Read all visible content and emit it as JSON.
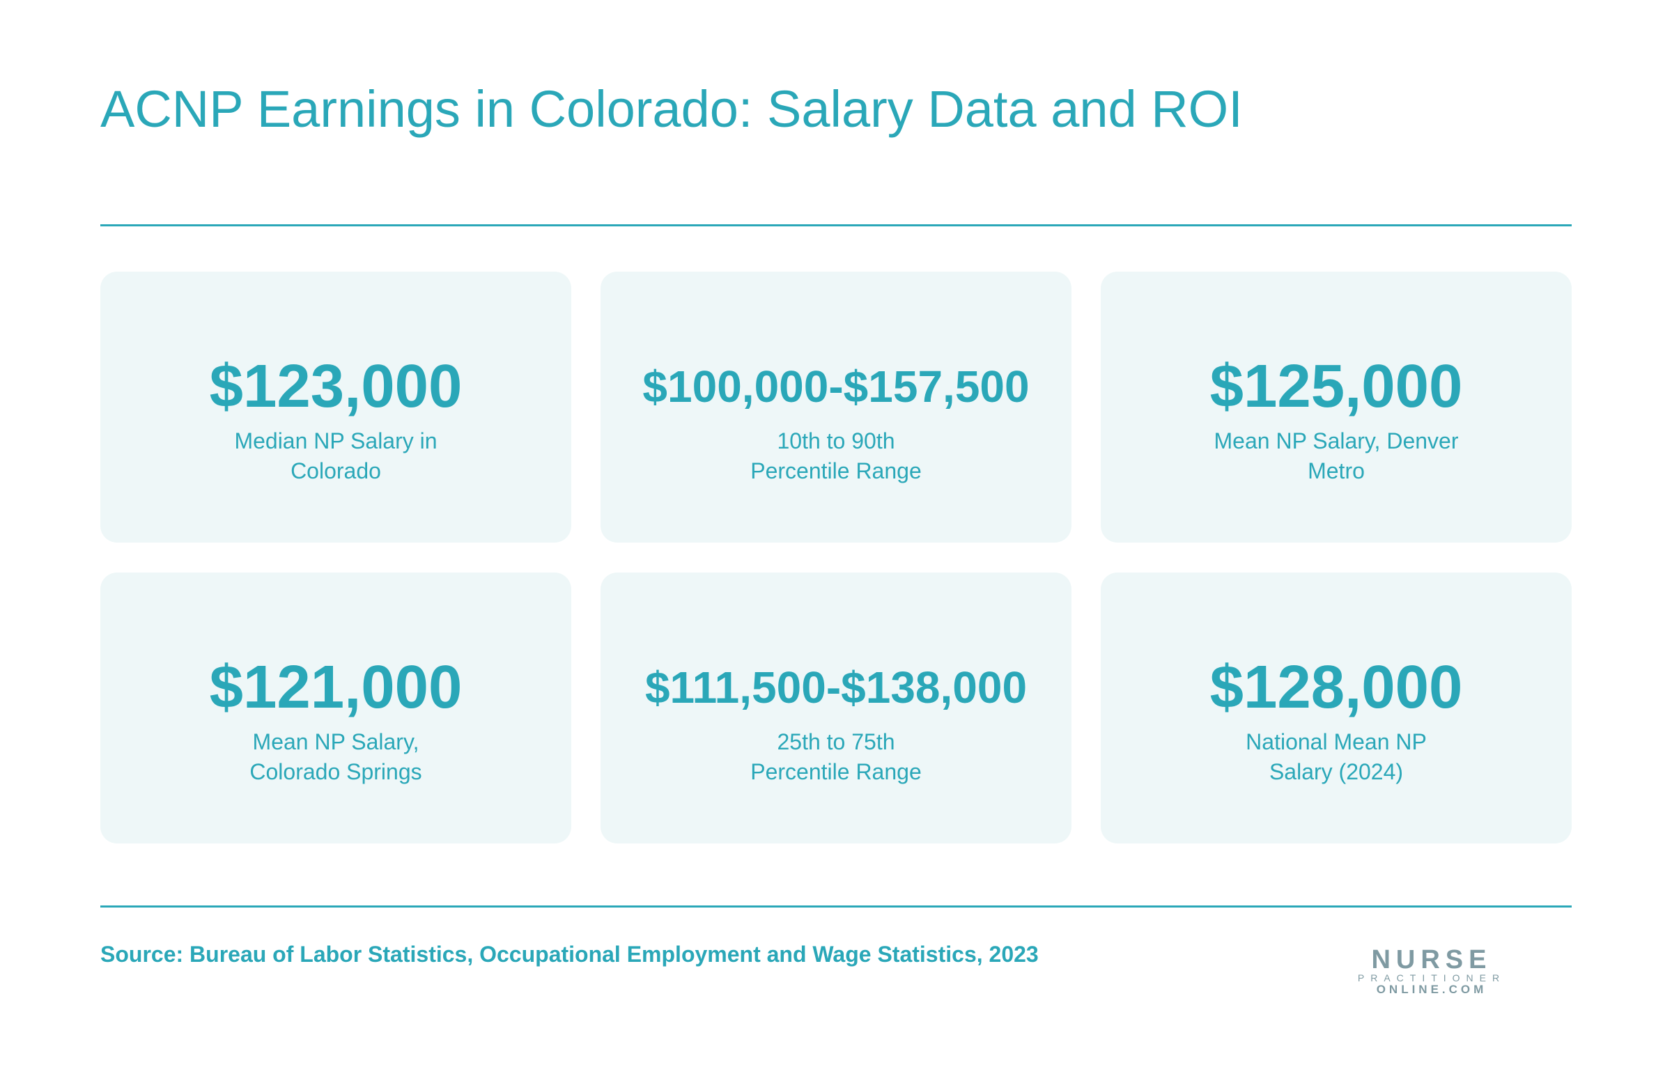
{
  "header": {
    "title": "ACNP Earnings in Colorado: Salary Data and ROI"
  },
  "cards": [
    {
      "value": "$123,000",
      "label": [
        "Median NP Salary in",
        "Colorado"
      ]
    },
    {
      "value": "$100,000-$157,500",
      "label": [
        "10th to 90th",
        "Percentile Range"
      ]
    },
    {
      "value": "$125,000",
      "label": [
        "Mean NP Salary, Denver",
        "Metro"
      ]
    },
    {
      "value": "$121,000",
      "label": [
        "Mean NP Salary,",
        "Colorado Springs"
      ]
    },
    {
      "value": "$111,500-$138,000",
      "label": [
        "25th to 75th",
        "Percentile Range"
      ]
    },
    {
      "value": "$128,000",
      "label": [
        "National Mean NP",
        "Salary (2024)"
      ]
    }
  ],
  "footer": {
    "source": "Source: Bureau of Labor Statistics, Occupational Employment and Wage Statistics, 2023",
    "logo": {
      "top": "NURSE",
      "middle": "PRACTITIONER",
      "bottom": "ONLINE.COM"
    }
  }
}
